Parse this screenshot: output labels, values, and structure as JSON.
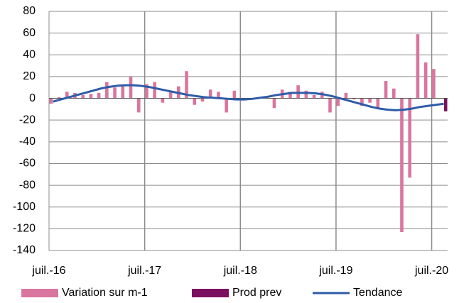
{
  "chart_data": {
    "type": "bar",
    "categories": [
      "juil.-16",
      null,
      null,
      null,
      null,
      null,
      null,
      null,
      null,
      null,
      null,
      null,
      "juil.-17",
      null,
      null,
      null,
      null,
      null,
      null,
      null,
      null,
      null,
      null,
      null,
      "juil.-18",
      null,
      null,
      null,
      null,
      null,
      null,
      null,
      null,
      null,
      null,
      null,
      "juil.-19",
      null,
      null,
      null,
      null,
      null,
      null,
      null,
      null,
      null,
      null,
      null,
      "juil.-20",
      null
    ],
    "series": [
      {
        "name": "Variation sur m-1",
        "type": "bar",
        "color": "#d9759f",
        "values": [
          -5,
          1,
          6,
          5,
          3,
          4,
          5,
          15,
          10,
          12,
          20,
          -13,
          13,
          15,
          -4,
          6,
          11,
          25,
          -6,
          -3,
          8,
          6,
          -13,
          7,
          -2,
          0,
          0,
          0,
          -9,
          8,
          6,
          12,
          7,
          3,
          6,
          -13,
          -7,
          5,
          -1,
          -7,
          -4,
          -10,
          16,
          9,
          -123,
          -73,
          59,
          33,
          27,
          null
        ]
      },
      {
        "name": "Prod prev",
        "type": "bar",
        "color": "#7b1060",
        "values": [
          null,
          null,
          null,
          null,
          null,
          null,
          null,
          null,
          null,
          null,
          null,
          null,
          null,
          null,
          null,
          null,
          null,
          null,
          null,
          null,
          null,
          null,
          null,
          null,
          null,
          null,
          null,
          null,
          null,
          null,
          null,
          null,
          null,
          null,
          null,
          null,
          null,
          null,
          null,
          null,
          null,
          null,
          null,
          null,
          null,
          null,
          null,
          null,
          null,
          -12
        ]
      },
      {
        "name": "Tendance",
        "type": "line",
        "color": "#2e5ca8",
        "values": [
          -3,
          -1,
          1,
          3,
          5,
          7,
          9,
          10.5,
          11.5,
          12,
          12,
          11.5,
          10.5,
          9,
          7.5,
          6,
          4.5,
          3,
          2,
          1,
          0.5,
          0,
          -0.5,
          -1,
          -1,
          -0.5,
          0.5,
          1.5,
          3,
          4,
          5,
          5,
          5,
          4.5,
          3.5,
          2,
          0,
          -2,
          -4,
          -6,
          -8,
          -9.5,
          -10.5,
          -11,
          -10.5,
          -9.5,
          -8,
          -7,
          -6,
          -5
        ]
      }
    ],
    "ylim": [
      -140,
      80
    ],
    "yticks": [
      -140,
      -120,
      -100,
      -80,
      -60,
      -40,
      -20,
      0,
      20,
      40,
      60,
      80
    ],
    "grid": true,
    "legend": "bottom"
  }
}
